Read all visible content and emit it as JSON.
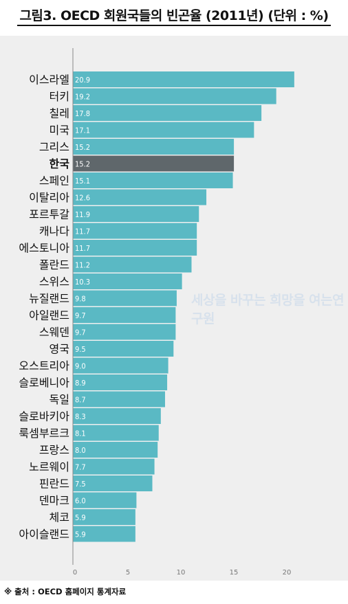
{
  "title": "그림3. OECD 회원국들의 빈곤율 (2011년) (단위 : %)",
  "watermark": "세상을 바꾸는 희망을 여는연구원",
  "source": "※ 출처 : OECD 홈페이지 통계자료",
  "colors": {
    "bar": "#5ab9c4",
    "highlight_bar": "#5f676b",
    "axis": "#8a8a8a",
    "panel": "#efefef",
    "bar_label": "#ffffff"
  },
  "chart_data": {
    "type": "bar",
    "orientation": "horizontal",
    "title": "그림3. OECD 회원국들의 빈곤율 (2011년) (단위 : %)",
    "categories": [
      "이스라엘",
      "터키",
      "칠레",
      "미국",
      "그리스",
      "한국",
      "스페인",
      "이탈리아",
      "포르투갈",
      "캐나다",
      "에스토니아",
      "폴란드",
      "스위스",
      "뉴질랜드",
      "아일랜드",
      "스웨덴",
      "영국",
      "오스트리아",
      "슬로베니아",
      "독일",
      "슬로바키아",
      "룩셈부르크",
      "프랑스",
      "노르웨이",
      "핀란드",
      "덴마크",
      "체코",
      "아이슬랜드"
    ],
    "values": [
      20.9,
      19.2,
      17.8,
      17.1,
      15.2,
      15.2,
      15.1,
      12.6,
      11.9,
      11.7,
      11.7,
      11.2,
      10.3,
      9.8,
      9.7,
      9.7,
      9.5,
      9.0,
      8.9,
      8.7,
      8.3,
      8.1,
      8.0,
      7.7,
      7.5,
      6.0,
      5.9,
      5.9
    ],
    "value_labels": [
      "20.9",
      "19.2",
      "17.8",
      "17.1",
      "15.2",
      "15.2",
      "15.1",
      "12.6",
      "11.9",
      "11.7",
      "11.7",
      "11.2",
      "10.3",
      "9.8",
      "9.7",
      "9.7",
      "9.5",
      "9.0",
      "8.9",
      "8.7",
      "8.3",
      "8.1",
      "8.0",
      "7.7",
      "7.5",
      "6.0",
      "5.9",
      "5.9"
    ],
    "highlight": "한국",
    "xlim": [
      0,
      22
    ],
    "xticks": [
      0,
      5,
      10,
      15,
      20
    ],
    "xlabel": "",
    "ylabel": "",
    "grid": false,
    "legend": "none"
  }
}
